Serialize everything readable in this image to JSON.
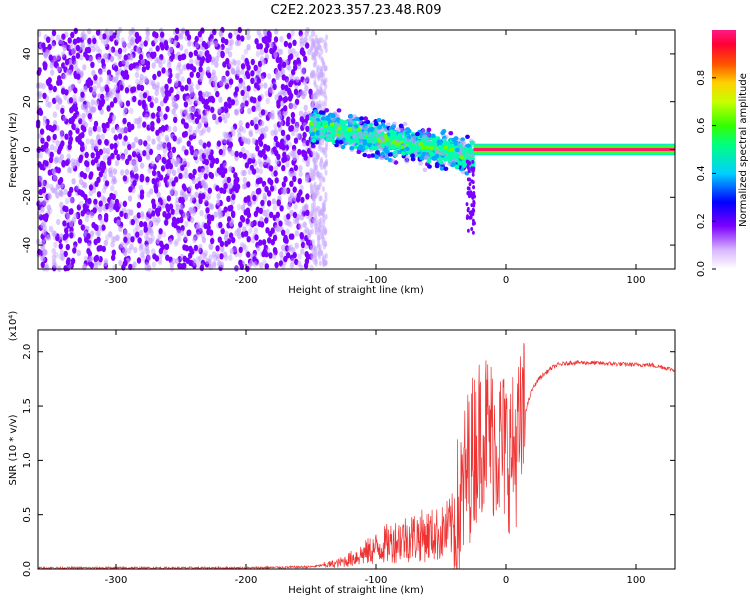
{
  "title": "C2E2.2023.357.23.48.R09",
  "chart_data": [
    {
      "type": "heatmap",
      "title": "C2E2.2023.357.23.48.R09",
      "xlabel": "Height of straight line (km)",
      "ylabel": "Frequency (Hz)",
      "xlim": [
        -360,
        130
      ],
      "ylim": [
        -50,
        50
      ],
      "x_ticks": [
        -300,
        -200,
        -100,
        0,
        100
      ],
      "y_ticks": [
        -40,
        -20,
        0,
        20,
        40
      ],
      "colorbar": {
        "label": "Normalized spectral amplitude",
        "range": [
          0.0,
          1.0
        ],
        "ticks": [
          "0.0",
          "0.2",
          "0.4",
          "0.6",
          "0.8"
        ]
      },
      "features": [
        {
          "description": "broadband noise",
          "x_range": [
            -360,
            -148
          ],
          "freq_range": [
            -50,
            50
          ],
          "amplitude": 0.2
        },
        {
          "description": "spread signal",
          "x_range": [
            -150,
            -25
          ],
          "freq_center_start": 10,
          "freq_center_end": -3,
          "freq_halfwidth": 10,
          "amplitude": 0.45
        },
        {
          "description": "narrow carrier",
          "x_range": [
            -25,
            130
          ],
          "freq_center": 0,
          "freq_halfwidth": 2,
          "amplitude": 0.95
        }
      ],
      "colors": {
        "low": "#f0e6ff",
        "mid": "#7b00ff",
        "high": "#ff1a66"
      }
    },
    {
      "type": "line",
      "xlabel": "Height of straight line (km)",
      "ylabel": "SNR (10 * v/v)",
      "scale_label": "(x10⁴)",
      "xlim": [
        -360,
        130
      ],
      "ylim": [
        0.0,
        2.2
      ],
      "x_ticks": [
        -300,
        -200,
        -100,
        0,
        100
      ],
      "y_ticks": [
        "0.0",
        "0.5",
        "1.0",
        "1.5",
        "2.0"
      ],
      "color": "#ee3333",
      "series": [
        {
          "x": [
            -360,
            -300,
            -200,
            -150,
            -130,
            -120,
            -110,
            -100,
            -90,
            -80,
            -70,
            -60,
            -50,
            -40,
            -35,
            -30,
            -25,
            -20,
            -15,
            -10,
            -5,
            0,
            5,
            10,
            15,
            20,
            25,
            30,
            35,
            40,
            50,
            60,
            80,
            100,
            110,
            120,
            130
          ],
          "values": [
            0.01,
            0.01,
            0.01,
            0.02,
            0.05,
            0.09,
            0.14,
            0.19,
            0.24,
            0.28,
            0.3,
            0.31,
            0.32,
            0.4,
            0.55,
            0.9,
            1.1,
            1.25,
            1.3,
            1.2,
            1.15,
            1.1,
            1.05,
            1.2,
            1.45,
            1.65,
            1.75,
            1.8,
            1.85,
            1.88,
            1.9,
            1.9,
            1.89,
            1.88,
            1.88,
            1.86,
            1.83
          ]
        }
      ]
    }
  ]
}
